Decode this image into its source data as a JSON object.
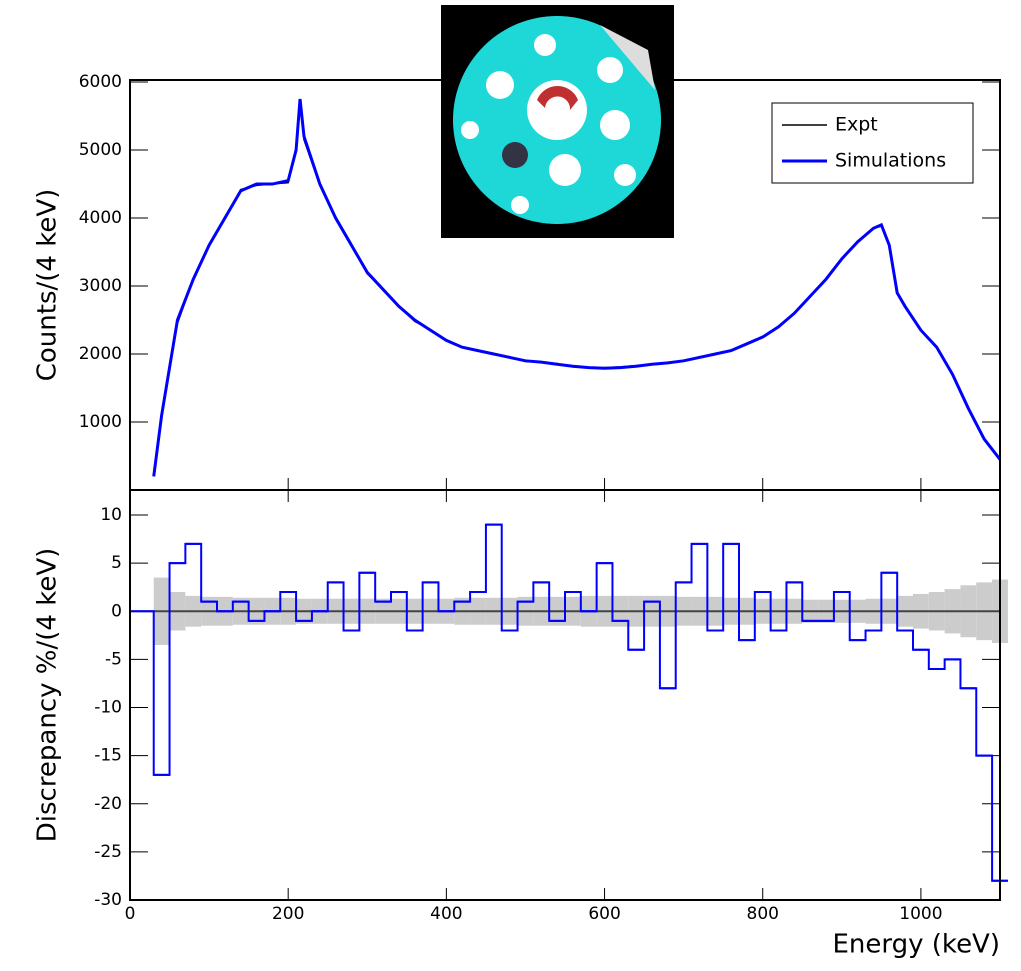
{
  "chart_data": [
    {
      "type": "line",
      "ylabel": "Counts/(4 keV)",
      "x": [
        30,
        40,
        50,
        60,
        80,
        100,
        120,
        140,
        160,
        180,
        200,
        210,
        215,
        220,
        240,
        260,
        280,
        300,
        320,
        340,
        360,
        380,
        400,
        420,
        440,
        460,
        480,
        500,
        520,
        540,
        560,
        580,
        600,
        620,
        640,
        660,
        680,
        700,
        720,
        740,
        760,
        780,
        800,
        820,
        840,
        860,
        880,
        900,
        920,
        940,
        950,
        960,
        970,
        980,
        1000,
        1020,
        1040,
        1060,
        1080,
        1100
      ],
      "series": [
        {
          "name": "Expt",
          "color": "#000000",
          "values": [
            220,
            1050,
            1800,
            2450,
            3100,
            3600,
            4000,
            4420,
            4480,
            4500,
            4520,
            5000,
            5700,
            5150,
            4480,
            4020,
            3620,
            3180,
            2960,
            2700,
            2480,
            2360,
            2200,
            2100,
            2060,
            1990,
            1960,
            1890,
            1880,
            1860,
            1810,
            1800,
            1800,
            1810,
            1830,
            1850,
            1870,
            1900,
            1960,
            2000,
            2060,
            2150,
            2260,
            2400,
            2600,
            2860,
            3100,
            3400,
            3660,
            3850,
            3880,
            3600,
            2900,
            2700,
            2350,
            2100,
            1700,
            1200,
            760,
            460
          ]
        },
        {
          "name": "Simulations",
          "color": "#0000ff",
          "values": [
            200,
            1100,
            1800,
            2500,
            3100,
            3600,
            4000,
            4400,
            4500,
            4500,
            4550,
            5000,
            5750,
            5200,
            4500,
            4000,
            3600,
            3200,
            2950,
            2700,
            2500,
            2350,
            2200,
            2100,
            2050,
            2000,
            1950,
            1900,
            1880,
            1850,
            1820,
            1800,
            1790,
            1800,
            1820,
            1850,
            1870,
            1900,
            1950,
            2000,
            2050,
            2150,
            2250,
            2400,
            2600,
            2850,
            3100,
            3400,
            3650,
            3850,
            3900,
            3600,
            2900,
            2700,
            2350,
            2100,
            1700,
            1200,
            750,
            450
          ]
        }
      ],
      "xlim": [
        0,
        1100
      ],
      "ylim": [
        0,
        6030
      ],
      "yticks": [
        1000,
        2000,
        3000,
        4000,
        5000,
        6000
      ],
      "legend": "top-right"
    },
    {
      "type": "step",
      "xlabel": "Energy (keV)",
      "ylabel": "Discrepancy %/(4 keV)",
      "x": [
        30,
        50,
        70,
        90,
        110,
        130,
        150,
        170,
        190,
        210,
        230,
        250,
        270,
        290,
        310,
        330,
        350,
        370,
        390,
        410,
        430,
        450,
        470,
        490,
        510,
        530,
        550,
        570,
        590,
        610,
        630,
        650,
        670,
        690,
        710,
        730,
        750,
        770,
        790,
        810,
        830,
        850,
        870,
        890,
        910,
        930,
        950,
        970,
        990,
        1010,
        1030,
        1050,
        1070,
        1090
      ],
      "bin_width": 20,
      "values": [
        -17,
        5,
        7,
        1,
        0,
        1,
        -1,
        0,
        2,
        -1,
        0,
        3,
        -2,
        4,
        1,
        2,
        -2,
        3,
        0,
        1,
        2,
        9,
        -2,
        1,
        3,
        -1,
        2,
        0,
        5,
        -1,
        -4,
        1,
        -8,
        3,
        7,
        -2,
        7,
        -3,
        2,
        -2,
        3,
        -1,
        -1,
        2,
        -3,
        -2,
        4,
        -2,
        -4,
        -6,
        -5,
        -8,
        -15,
        -28
      ],
      "error_band": [
        3.5,
        2,
        1.6,
        1.5,
        1.5,
        1.4,
        1.4,
        1.4,
        1.4,
        1.3,
        1.3,
        1.3,
        1.3,
        1.3,
        1.3,
        1.3,
        1.3,
        1.3,
        1.3,
        1.4,
        1.4,
        1.4,
        1.4,
        1.5,
        1.5,
        1.5,
        1.5,
        1.6,
        1.6,
        1.6,
        1.6,
        1.6,
        1.6,
        1.5,
        1.5,
        1.5,
        1.4,
        1.4,
        1.3,
        1.3,
        1.3,
        1.2,
        1.2,
        1.2,
        1.2,
        1.3,
        1.3,
        1.6,
        1.8,
        2.0,
        2.3,
        2.7,
        3.0,
        3.3
      ],
      "color": "#0000ff",
      "band_color": "#cccccc",
      "xlim": [
        0,
        1100
      ],
      "xticks": [
        0,
        200,
        400,
        600,
        800,
        1000
      ],
      "ylim": [
        -30,
        12.6
      ],
      "yticks": [
        10,
        5,
        0,
        -5,
        -10,
        -15,
        -20,
        -25,
        -30
      ]
    }
  ]
}
